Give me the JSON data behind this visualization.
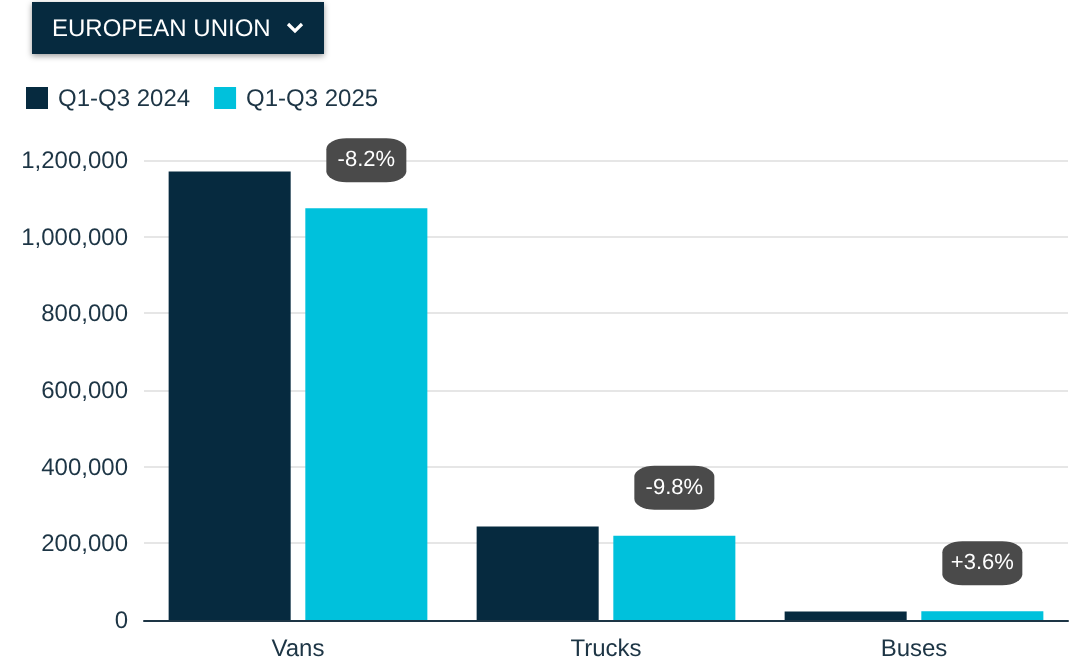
{
  "chart_data": {
    "type": "bar",
    "title": "EUROPEAN UNION",
    "categories": [
      "Vans",
      "Trucks",
      "Buses"
    ],
    "series": [
      {
        "name": "Q1-Q3 2024",
        "color": "#062a3f",
        "values": [
          1170000,
          244000,
          22000
        ]
      },
      {
        "name": "Q1-Q3 2025",
        "color": "#00c1dc",
        "values": [
          1074000,
          220000,
          23000
        ]
      }
    ],
    "ylim": [
      0,
      1200000
    ],
    "yticks": [
      0,
      {
        "value": 200000,
        "label": "200,000"
      },
      {
        "value": 400000,
        "label": "400,000"
      },
      {
        "value": 600000,
        "label": "600,000"
      },
      {
        "value": 800000,
        "label": "800,000"
      },
      {
        "value": 1000000,
        "label": "1,000,000"
      },
      {
        "value": 1200000,
        "label": "1,200,000"
      }
    ],
    "grid": "y",
    "legend": "top left",
    "annotations": [
      {
        "text": "-8.2%",
        "x": "Vans",
        "y": 1074000
      },
      {
        "text": "-9.8%",
        "x": "Trucks",
        "y": 220000
      },
      {
        "text": "+3.6%",
        "x": "Buses",
        "y": 23000
      }
    ]
  }
}
